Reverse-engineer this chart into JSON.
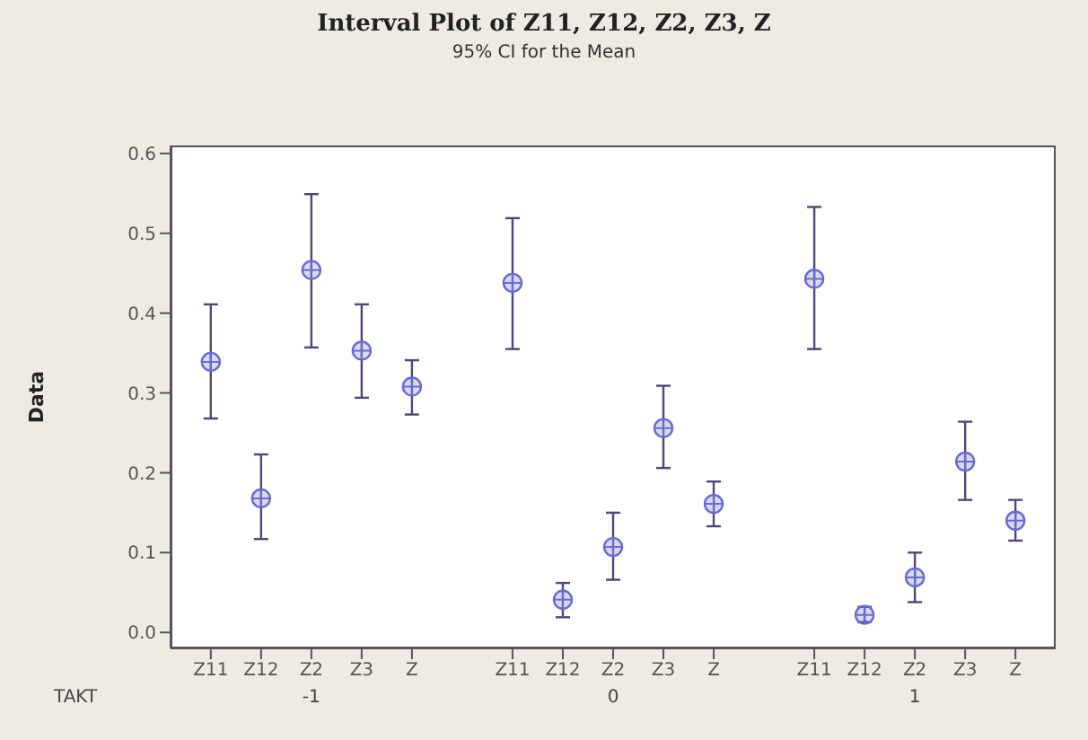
{
  "chart_data": {
    "type": "scatter",
    "title": "Interval Plot of Z11, Z12, Z2, Z3, Z",
    "subtitle": "95% CI for the Mean",
    "ylabel": "Data",
    "categories": [
      "Z11",
      "Z12",
      "Z2",
      "Z3",
      "Z",
      null,
      "Z11",
      "Z12",
      "Z2",
      "Z3",
      "Z",
      null,
      "Z11",
      "Z12",
      "Z2",
      "Z3",
      "Z"
    ],
    "series": [
      {
        "color": "#6a6ad8",
        "values": [
          0.339,
          0.168,
          0.454,
          0.353,
          0.308,
          null,
          0.438,
          0.041,
          0.107,
          0.256,
          0.161,
          null,
          0.443,
          0.022,
          0.069,
          0.214,
          0.14
        ],
        "errors": [
          [
            0.268,
            0.411
          ],
          [
            0.117,
            0.223
          ],
          [
            0.357,
            0.549
          ],
          [
            0.294,
            0.411
          ],
          [
            0.273,
            0.341
          ],
          null,
          [
            0.355,
            0.519
          ],
          [
            0.019,
            0.062
          ],
          [
            0.066,
            0.15
          ],
          [
            0.206,
            0.309
          ],
          [
            0.133,
            0.189
          ],
          null,
          [
            0.355,
            0.533
          ],
          [
            0.013,
            0.032
          ],
          [
            0.038,
            0.1
          ],
          [
            0.166,
            0.264
          ],
          [
            0.115,
            0.166
          ]
        ]
      }
    ],
    "ylim": [
      -0.02,
      0.61
    ],
    "yticks": [
      {
        "value": 0,
        "label": "0.0"
      },
      {
        "value": 0.1,
        "label": "0.1"
      },
      {
        "value": 0.2,
        "label": "0.2"
      },
      {
        "value": 0.3,
        "label": "0.3"
      },
      {
        "value": 0.4,
        "label": "0.4"
      },
      {
        "value": 0.5,
        "label": "0.5"
      },
      {
        "value": 0.6,
        "label": "0.6"
      }
    ],
    "marker": "circle",
    "grid": false,
    "legend": false,
    "annotations": [
      "TAKT",
      "-1",
      "0",
      "1"
    ]
  }
}
